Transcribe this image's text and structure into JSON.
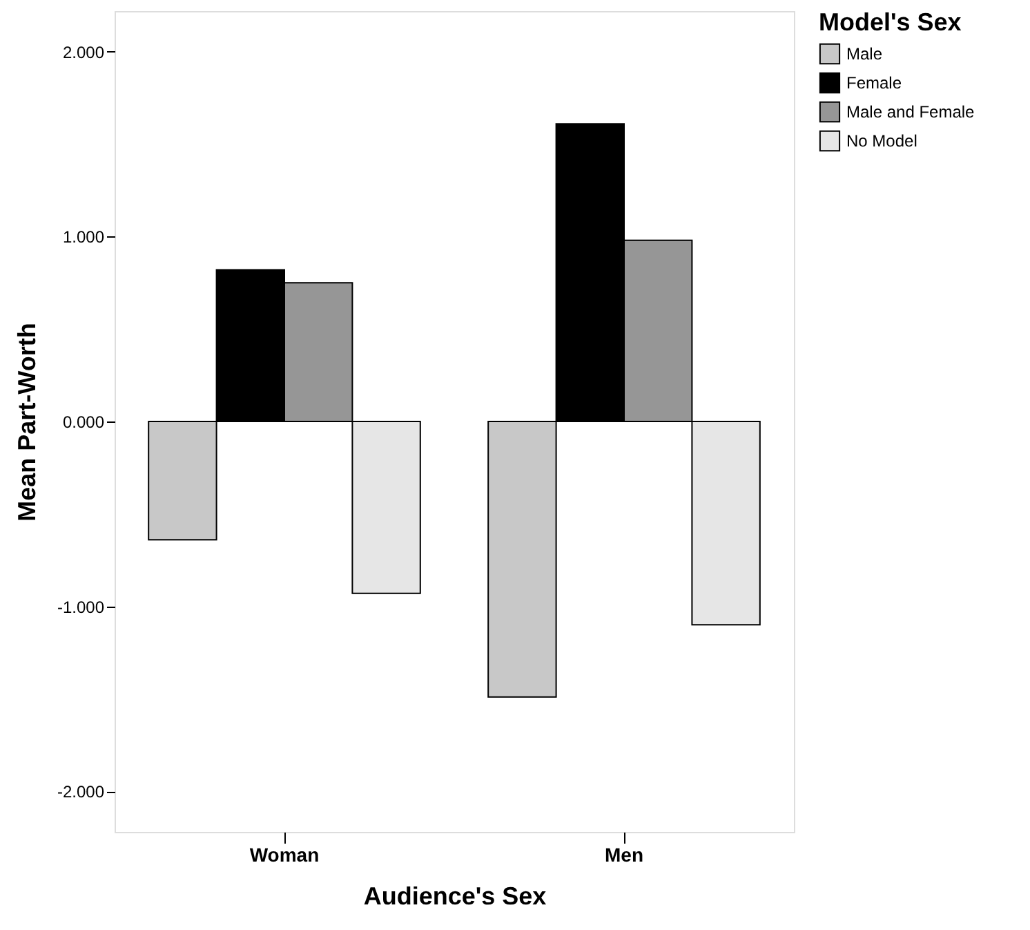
{
  "chart_data": {
    "type": "bar",
    "xlabel": "Audience's Sex",
    "ylabel": "Mean Part-Worth",
    "legend_title": "Model's Sex",
    "categories": [
      "Woman",
      "Men"
    ],
    "series": [
      {
        "name": "Male",
        "color": "#c8c8c8",
        "values": [
          -0.64,
          -1.49
        ]
      },
      {
        "name": "Female",
        "color": "#000000",
        "values": [
          0.82,
          1.61
        ]
      },
      {
        "name": "Male and Female",
        "color": "#969696",
        "values": [
          0.75,
          0.98
        ]
      },
      {
        "name": "No Model",
        "color": "#e6e6e6",
        "values": [
          -0.93,
          -1.1
        ]
      }
    ],
    "ylim": [
      -2.22,
      2.22
    ],
    "yticks": [
      {
        "value": -2,
        "label": "-2.000"
      },
      {
        "value": -1,
        "label": "-1.000"
      },
      {
        "value": 0,
        "label": "0.000"
      },
      {
        "value": 1,
        "label": "1.000"
      },
      {
        "value": 2,
        "label": "2.000"
      }
    ],
    "grid": false,
    "legend": "top right"
  }
}
